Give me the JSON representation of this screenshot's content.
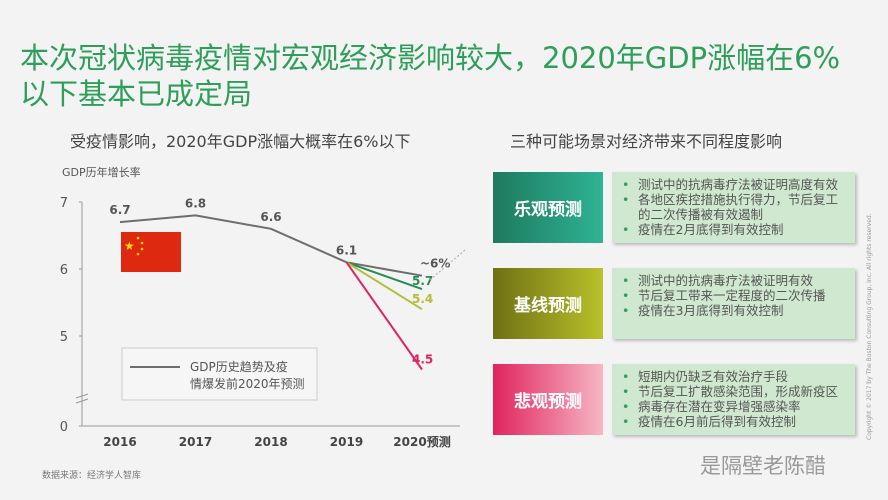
{
  "title": "本次冠状病毒疫情对宏观经济影响较大，2020年GDP涨幅在6%以下基本已成定局",
  "left_subtitle": "受疫情影响，2020年GDP涨幅大概率在6%以下",
  "right_subtitle": "三种可能场景对经济带来不同程度影响",
  "source": "数据来源：经济学人智库",
  "watermark": "是隔壁老陈醋",
  "copyright": "Copyright © 2017 by The Boston Consulting Group, Inc. All rights reserved.",
  "chart_data": {
    "type": "line",
    "ylabel": "GDP历年增长率",
    "categories": [
      "2016",
      "2017",
      "2018",
      "2019",
      "2020预测"
    ],
    "yticks": [
      0,
      5,
      6,
      7
    ],
    "ylim": [
      0,
      7
    ],
    "axis_break": true,
    "series": [
      {
        "name": "GDP历史趋势及疫情爆发前2020年预测",
        "values": [
          6.7,
          6.8,
          6.6,
          6.1,
          5.9
        ],
        "labels": [
          "6.7",
          "6.8",
          "6.6",
          "6.1",
          "~6%"
        ],
        "color": "#6d6d6d"
      },
      {
        "values": [
          null,
          null,
          null,
          6.1,
          5.7
        ],
        "labels": [
          null,
          null,
          null,
          null,
          "5.7"
        ],
        "color": "#2a8a55"
      },
      {
        "values": [
          null,
          null,
          null,
          6.1,
          5.4
        ],
        "labels": [
          null,
          null,
          null,
          null,
          "5.4"
        ],
        "color": "#b5bd3a"
      },
      {
        "values": [
          null,
          null,
          null,
          6.1,
          4.5
        ],
        "labels": [
          null,
          null,
          null,
          null,
          "4.5"
        ],
        "color": "#e0245e"
      }
    ],
    "legend": "bottom-center"
  },
  "scenarios": [
    {
      "label": "乐观预测",
      "gradient": [
        "#1e7a5e",
        "#2fb394"
      ],
      "points": [
        "测试中的抗病毒疗法被证明高度有效",
        "各地区疾控措施执行得力，节后复工的二次传播被有效遏制",
        "疫情在2月底得到有效控制"
      ]
    },
    {
      "label": "基线预测",
      "gradient": [
        "#6f7014",
        "#b9c12a"
      ],
      "points": [
        "测试中的抗病毒疗法被证明有效",
        "节后复工带来一定程度的二次传播",
        "疫情在3月底得到有效控制"
      ]
    },
    {
      "label": "悲观预测",
      "gradient": [
        "#e0245e",
        "#f7b6c4"
      ],
      "points": [
        "短期内仍缺乏有效治疗手段",
        "节后复工扩散感染范围，形成新疫区",
        "病毒存在潜在变异增强感染率",
        "疫情在6月前后得到有效控制"
      ]
    }
  ]
}
